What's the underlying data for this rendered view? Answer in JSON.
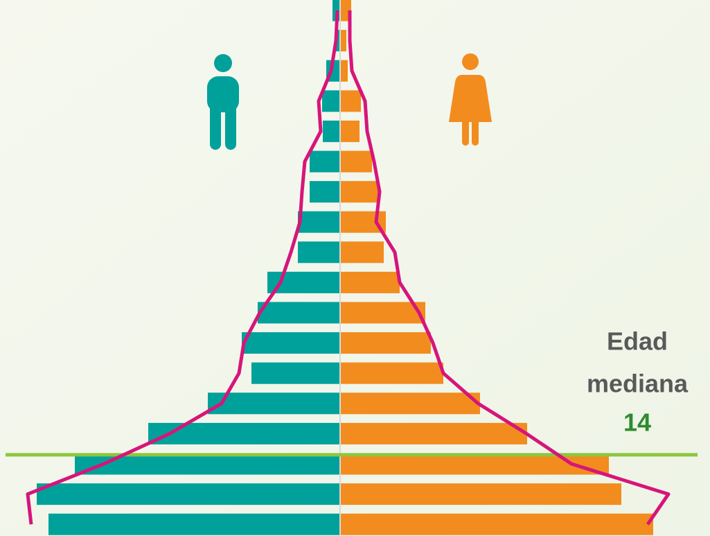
{
  "chart_data": {
    "type": "population-pyramid",
    "categories": [
      null,
      null,
      null,
      null,
      null,
      null,
      null,
      null,
      null,
      null,
      null,
      null,
      null,
      null,
      null,
      null,
      null,
      null
    ],
    "series": [
      {
        "side": "left",
        "color": "#00a19a",
        "values": [
          11,
          6,
          20,
          26,
          25,
          44,
          44,
          61,
          61,
          105,
          119,
          142,
          128,
          191,
          277,
          383,
          438,
          421
        ]
      },
      {
        "side": "right",
        "color": "#f28c1f",
        "values": [
          16,
          9,
          11,
          30,
          28,
          46,
          55,
          66,
          63,
          86,
          123,
          131,
          149,
          202,
          270,
          388,
          406,
          452
        ]
      }
    ],
    "reference_series": [
      {
        "side": "left",
        "color": "#d6157a",
        "values": [
          4,
          6,
          13,
          31,
          28,
          51,
          55,
          58,
          71,
          86,
          116,
          139,
          146,
          171,
          246,
          341,
          451,
          446
        ]
      },
      {
        "side": "right",
        "color": "#d6157a",
        "values": [
          14,
          14,
          17,
          36,
          39,
          49,
          57,
          52,
          79,
          86,
          114,
          134,
          149,
          199,
          269,
          334,
          474,
          444
        ]
      }
    ],
    "median_label": [
      "Edad",
      "mediana"
    ],
    "median_age": 14,
    "median_color": "#8cc63f",
    "median_text_color": "#2e8b2e"
  }
}
